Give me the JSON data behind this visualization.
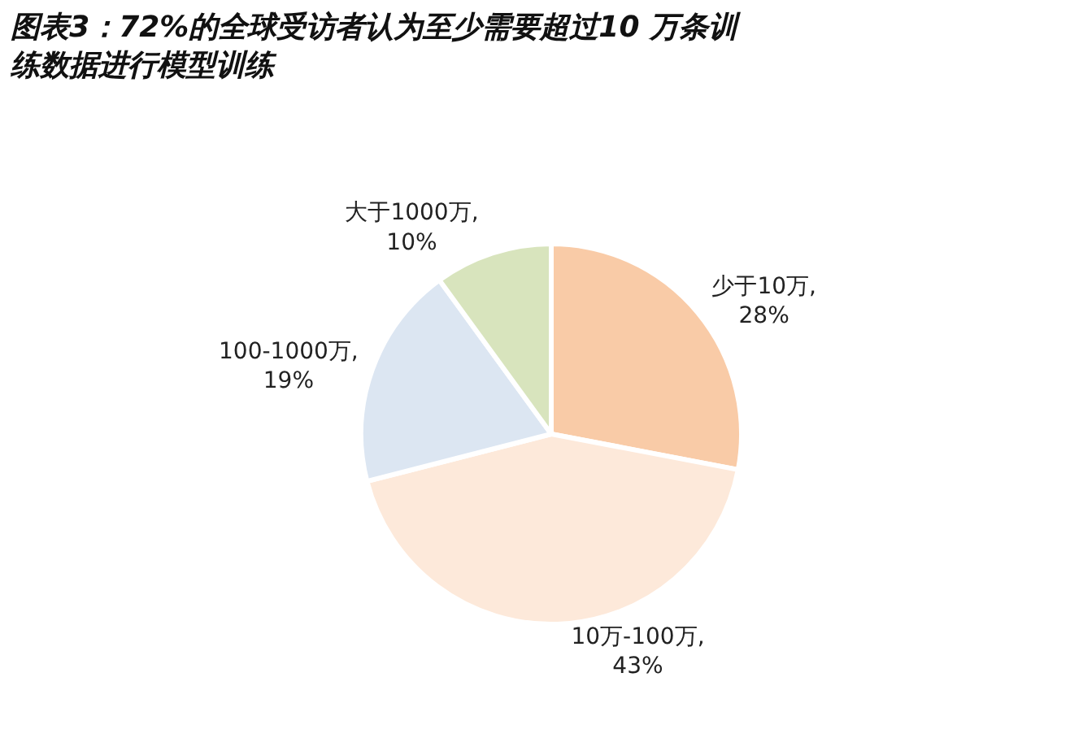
{
  "chart_data": {
    "type": "pie",
    "title": "图表3：72%的全球受访者认为至少需要超过10 万条训练数据进行模型训练",
    "categories": [
      "少于10万",
      "10万-100万",
      "100-1000万",
      "大于1000万"
    ],
    "values": [
      28,
      43,
      19,
      10
    ],
    "value_labels": [
      ",\n28%",
      ",\n43%",
      ",\n19%",
      ",\n10%"
    ],
    "colors": [
      "#f9cba7",
      "#fde9da",
      "#dce6f2",
      "#d8e4bd"
    ],
    "legend": false
  }
}
